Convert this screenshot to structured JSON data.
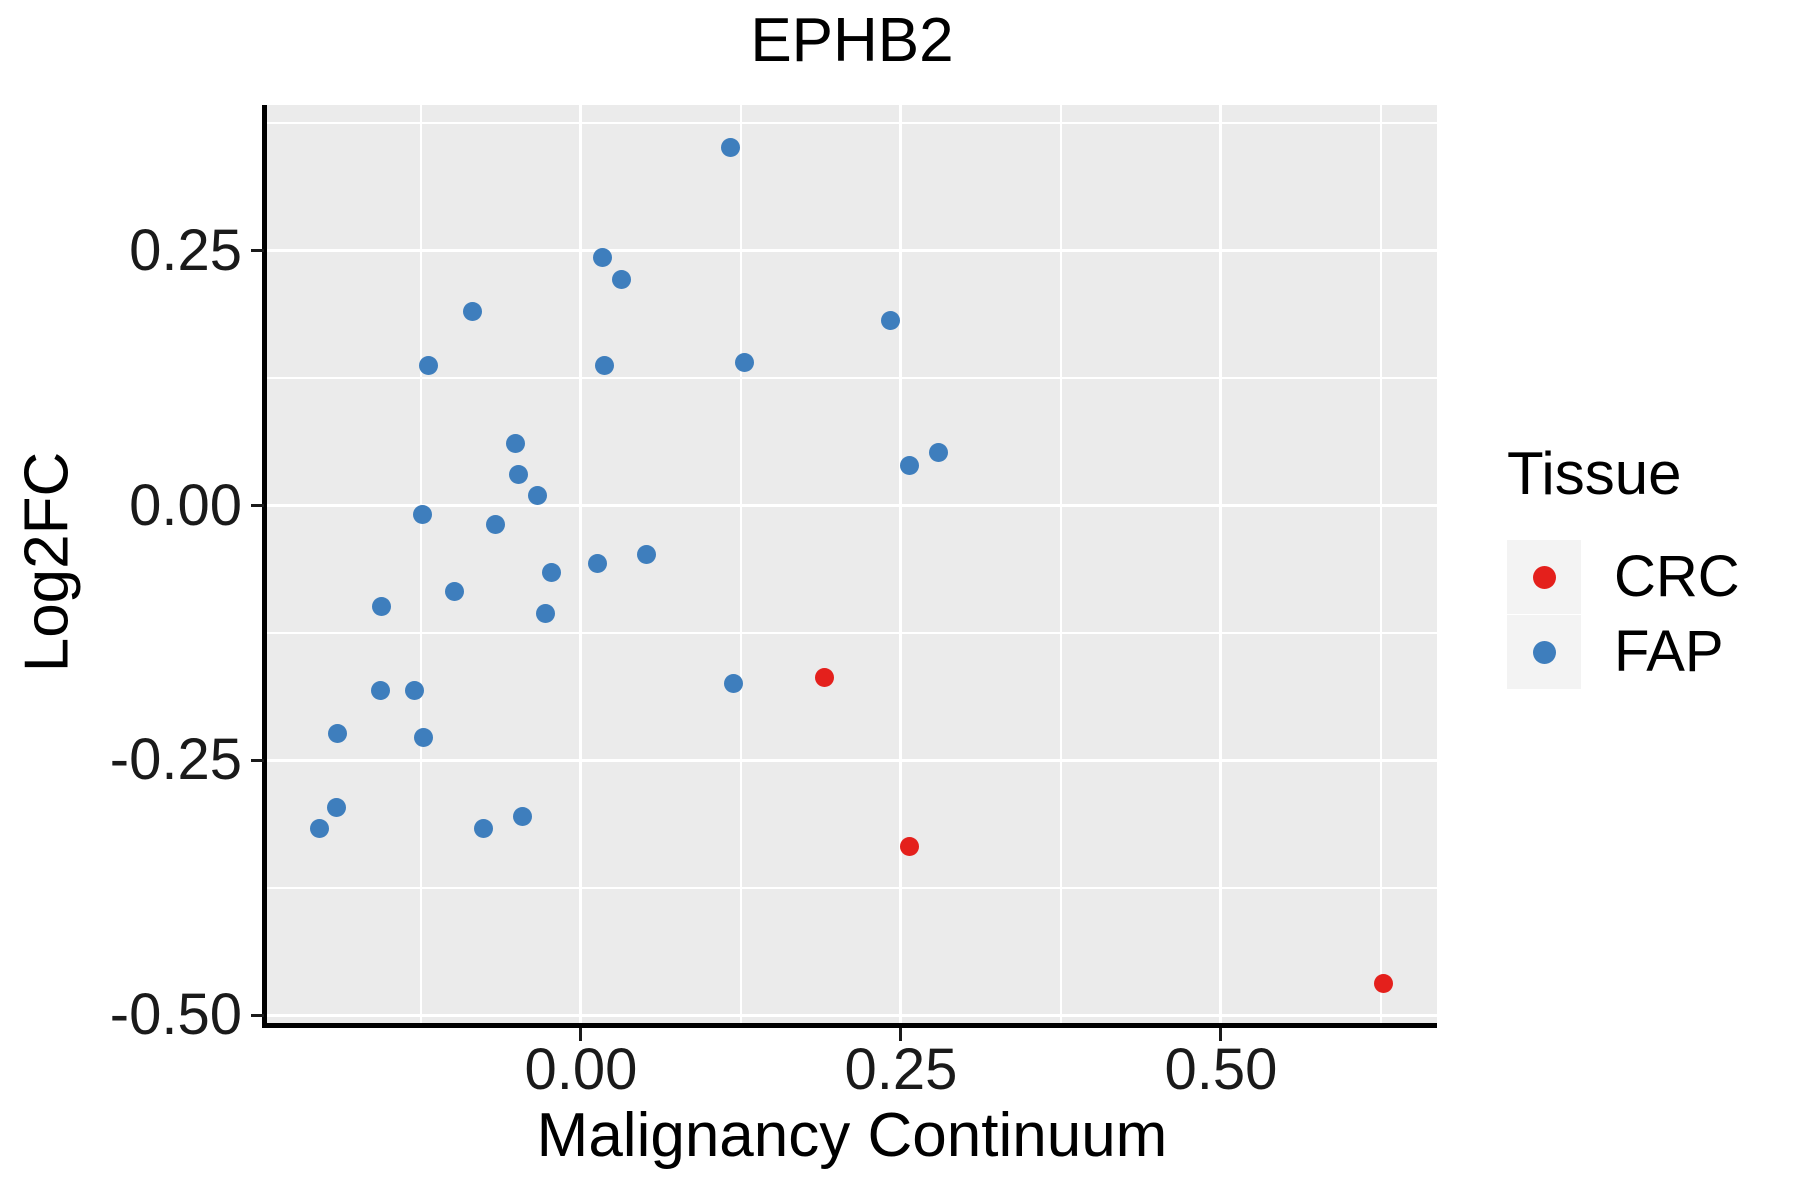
{
  "title": "EPHB2",
  "colors": {
    "crc": "#E4201C",
    "fap": "#3E7EBD",
    "panel_bg": "#EBEBEB",
    "grid": "#FFFFFF",
    "legend_key_bg": "#F3F3F3",
    "spine": "#000000"
  },
  "legend": {
    "title": "Tissue",
    "items": [
      {
        "label": "CRC",
        "color": "#E4201C"
      },
      {
        "label": "FAP",
        "color": "#3E7EBD"
      }
    ]
  },
  "axes": {
    "x_title": "Malignancy Continuum",
    "y_title": "Log2FC"
  },
  "chart_data": {
    "type": "scatter",
    "title": "EPHB2",
    "xlabel": "Malignancy Continuum",
    "ylabel": "Log2FC",
    "xlim": [
      -0.2453,
      0.6688
    ],
    "ylim": [
      -0.5078,
      0.393
    ],
    "grid": "on",
    "legend_position": "right",
    "legend_title": "Tissue",
    "x_major_ticks": [
      {
        "value": 0.0,
        "label": "0.00"
      },
      {
        "value": 0.25,
        "label": "0.25"
      },
      {
        "value": 0.5,
        "label": "0.50"
      }
    ],
    "x_minor_ticks": [
      -0.125,
      0.125,
      0.375,
      0.625
    ],
    "y_major_ticks": [
      {
        "value": 0.25,
        "label": "0.25"
      },
      {
        "value": 0.0,
        "label": "0.00"
      },
      {
        "value": -0.25,
        "label": "-0.25"
      },
      {
        "value": -0.5,
        "label": "-0.50"
      }
    ],
    "y_minor_ticks": [
      0.375,
      0.125,
      -0.125,
      -0.375
    ],
    "series": [
      {
        "name": "FAP",
        "color": "#3E7EBD",
        "points": [
          [
            0.117,
            0.351
          ],
          [
            0.017,
            0.243
          ],
          [
            0.032,
            0.222
          ],
          [
            -0.085,
            0.19
          ],
          [
            0.242,
            0.182
          ],
          [
            -0.119,
            0.137
          ],
          [
            0.018,
            0.137
          ],
          [
            0.128,
            0.14
          ],
          [
            -0.051,
            0.061
          ],
          [
            -0.049,
            0.03
          ],
          [
            -0.034,
            0.01
          ],
          [
            -0.124,
            -0.009
          ],
          [
            -0.067,
            -0.019
          ],
          [
            0.257,
            0.039
          ],
          [
            0.279,
            0.052
          ],
          [
            0.051,
            -0.048
          ],
          [
            0.013,
            -0.057
          ],
          [
            -0.023,
            -0.066
          ],
          [
            -0.099,
            -0.084
          ],
          [
            -0.156,
            -0.099
          ],
          [
            -0.028,
            -0.106
          ],
          [
            0.119,
            -0.175
          ],
          [
            -0.157,
            -0.182
          ],
          [
            -0.13,
            -0.182
          ],
          [
            -0.19,
            -0.224
          ],
          [
            -0.123,
            -0.228
          ],
          [
            -0.191,
            -0.296
          ],
          [
            -0.204,
            -0.317
          ],
          [
            -0.076,
            -0.317
          ],
          [
            -0.046,
            -0.305
          ]
        ]
      },
      {
        "name": "CRC",
        "color": "#E4201C",
        "points": [
          [
            0.19,
            -0.169
          ],
          [
            0.257,
            -0.335
          ],
          [
            0.627,
            -0.469
          ]
        ]
      }
    ]
  }
}
